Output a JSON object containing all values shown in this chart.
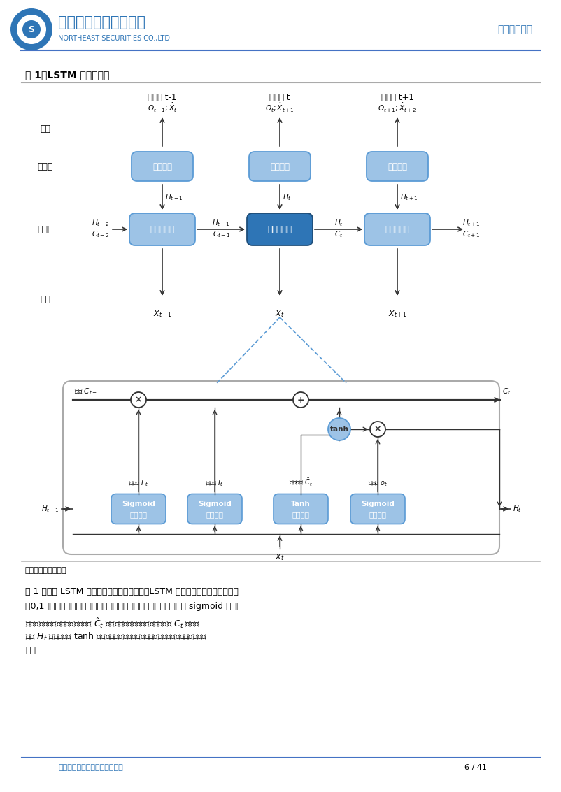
{
  "title": "图 1：LSTM 网络示意图",
  "figure_caption": "数据来源：东北证券",
  "footer_text": "请务必阅读正文后的声明及说明",
  "page_num": "6 / 41",
  "dept": "金融工程研究",
  "col_blue_light": "#9DC3E6",
  "col_blue_mid": "#5B9BD5",
  "col_blue_dark": "#2E75B6",
  "col_blue_accent": "#1F4E79",
  "col_arrow": "#333333",
  "col_line": "#4472C4",
  "col_dash": "#5B9BD5"
}
